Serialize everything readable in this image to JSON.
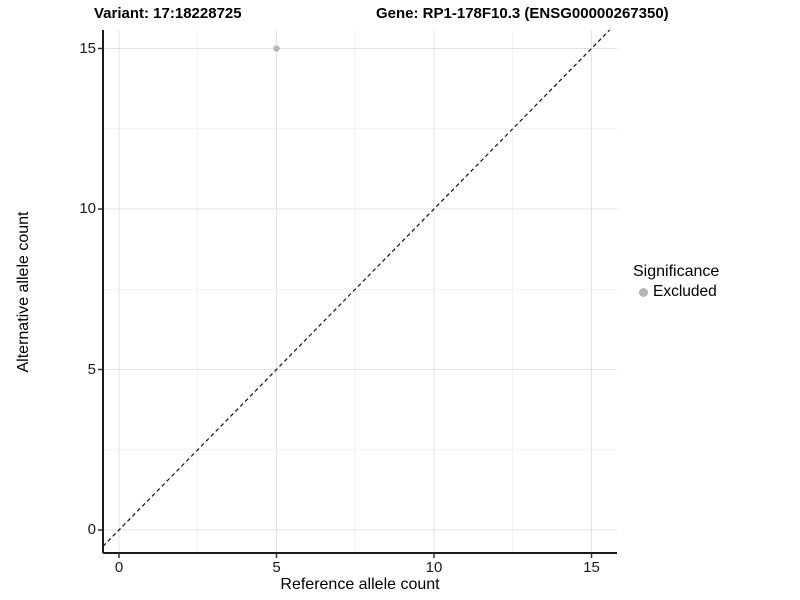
{
  "titles": {
    "variant": "Variant: 17:18228725",
    "gene": "Gene: RP1-178F10.3 (ENSG00000267350)"
  },
  "chart_data": {
    "type": "scatter",
    "title": "Variant: 17:18228725   Gene: RP1-178F10.3 (ENSG00000267350)",
    "xlabel": "Reference allele count",
    "ylabel": "Alternative allele count",
    "xlim": [
      -0.5,
      15.8
    ],
    "ylim": [
      -0.72,
      15.6
    ],
    "xticks": [
      0,
      5,
      10,
      15
    ],
    "yticks": [
      0,
      5,
      10,
      15
    ],
    "x_minor_ticks": [
      2.5,
      7.5,
      12.5
    ],
    "y_minor_ticks": [
      2.5,
      7.5,
      12.5
    ],
    "grid": true,
    "points": [
      {
        "x": 5,
        "y": 15,
        "significance": "Excluded"
      }
    ],
    "reference_line": {
      "type": "identity",
      "slope": 1,
      "intercept": 0,
      "style": "dashed"
    },
    "legend": {
      "title": "Significance",
      "position": "right",
      "entries": [
        {
          "label": "Excluded",
          "color": "#b4b4b4"
        }
      ]
    }
  },
  "colors": {
    "point": "#b8b8b8",
    "grid_major": "#e3e3e3",
    "grid_minor": "#f1f1f1",
    "axis_line": "#1a1a1a",
    "tick_mark": "#333333",
    "identity_line": "#111111",
    "background": "#ffffff"
  }
}
